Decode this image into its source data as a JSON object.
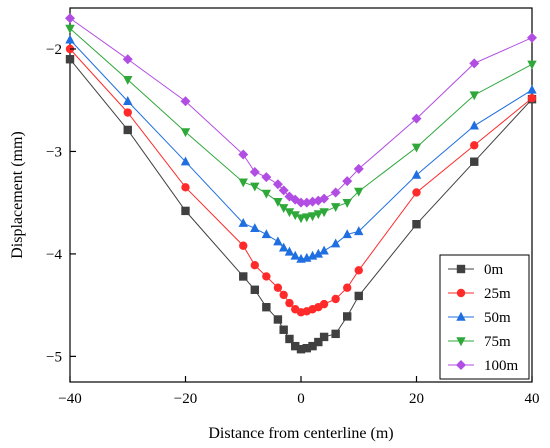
{
  "chart_data": {
    "type": "line",
    "title": "",
    "xlabel": "Distance from centerline (m)",
    "ylabel": "Displacement (mm)",
    "xlim": [
      -40,
      40
    ],
    "ylim": [
      -5.25,
      -1.6
    ],
    "xticks": [
      -40,
      -20,
      0,
      20,
      40
    ],
    "xtick_labels": [
      "−40",
      "−20",
      "0",
      "20",
      "40"
    ],
    "yticks": [
      -5,
      -4,
      -3,
      -2
    ],
    "ytick_labels": [
      "−5",
      "−4",
      "−3",
      "−2"
    ],
    "grid": false,
    "legend_position": "bottom-right",
    "x": [
      -40,
      -30,
      -20,
      -10,
      -8,
      -6,
      -4,
      -3,
      -2,
      -1,
      0,
      1,
      2,
      3,
      4,
      6,
      8,
      10,
      20,
      30,
      40
    ],
    "series": [
      {
        "name": "0m",
        "color": "#404040",
        "marker": "square",
        "values": [
          -2.1,
          -2.79,
          -3.58,
          -4.22,
          -4.35,
          -4.52,
          -4.64,
          -4.74,
          -4.83,
          -4.9,
          -4.93,
          -4.92,
          -4.9,
          -4.86,
          -4.81,
          -4.78,
          -4.61,
          -4.41,
          -3.71,
          -3.1,
          -2.49
        ]
      },
      {
        "name": "25m",
        "color": "#ff2a2a",
        "marker": "circle",
        "values": [
          -2.0,
          -2.62,
          -3.35,
          -3.92,
          -4.11,
          -4.22,
          -4.33,
          -4.4,
          -4.48,
          -4.54,
          -4.57,
          -4.56,
          -4.54,
          -4.52,
          -4.49,
          -4.44,
          -4.33,
          -4.16,
          -3.4,
          -2.94,
          -2.48
        ]
      },
      {
        "name": "50m",
        "color": "#1f6fe0",
        "marker": "triangle-up",
        "values": [
          -1.91,
          -2.51,
          -3.1,
          -3.7,
          -3.75,
          -3.81,
          -3.88,
          -3.94,
          -3.98,
          -4.02,
          -4.05,
          -4.04,
          -4.02,
          -4.0,
          -3.97,
          -3.9,
          -3.81,
          -3.78,
          -3.23,
          -2.75,
          -2.4
        ]
      },
      {
        "name": "75m",
        "color": "#2fa83a",
        "marker": "triangle-down",
        "values": [
          -1.8,
          -2.3,
          -2.81,
          -3.3,
          -3.34,
          -3.41,
          -3.49,
          -3.55,
          -3.59,
          -3.62,
          -3.65,
          -3.64,
          -3.63,
          -3.61,
          -3.59,
          -3.54,
          -3.5,
          -3.39,
          -2.96,
          -2.45,
          -2.15
        ]
      },
      {
        "name": "100m",
        "color": "#b24de3",
        "marker": "diamond",
        "values": [
          -1.7,
          -2.1,
          -2.51,
          -3.03,
          -3.2,
          -3.25,
          -3.32,
          -3.38,
          -3.44,
          -3.47,
          -3.5,
          -3.5,
          -3.49,
          -3.48,
          -3.46,
          -3.4,
          -3.29,
          -3.17,
          -2.68,
          -2.14,
          -1.89
        ]
      }
    ]
  }
}
